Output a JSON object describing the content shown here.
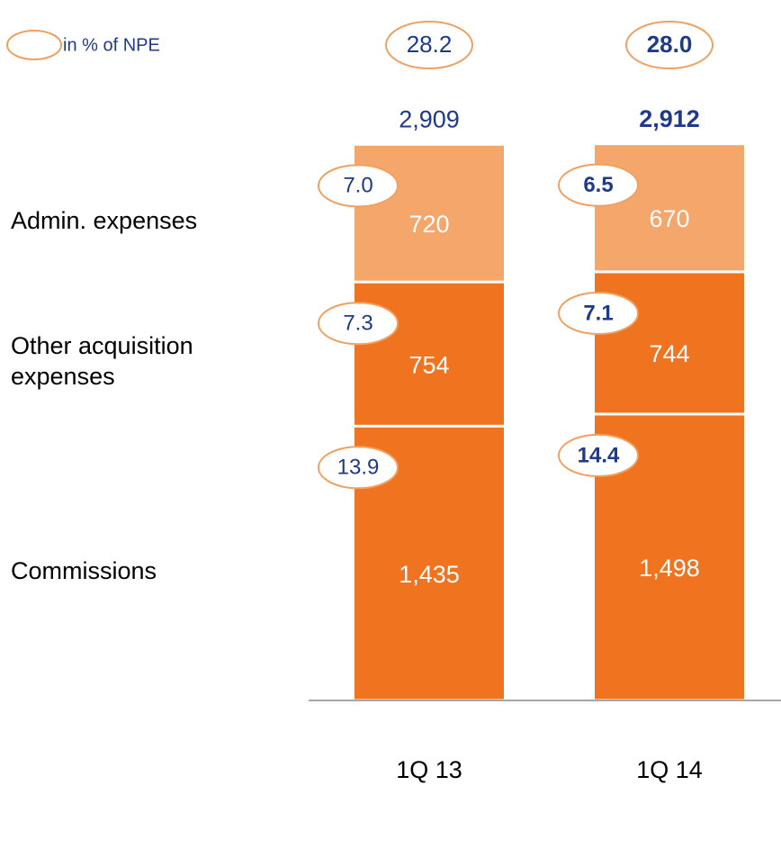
{
  "chart_data": {
    "type": "bar",
    "stacked": true,
    "categories": [
      "1Q 13",
      "1Q 14"
    ],
    "highlight": [
      false,
      true
    ],
    "ratio_legend": "in % of NPE",
    "ylim": [
      0,
      3000
    ],
    "series": [
      {
        "name": "Commissions",
        "color": "#f07320",
        "values": [
          1435,
          1498
        ],
        "value_labels": [
          "1,435",
          "1,498"
        ],
        "ratios": [
          13.9,
          14.4
        ],
        "ratio_labels": [
          "13.9",
          "14.4"
        ]
      },
      {
        "name": "Other acquisition expenses",
        "color": "#f07320",
        "values": [
          754,
          744
        ],
        "value_labels": [
          "754",
          "744"
        ],
        "ratios": [
          7.3,
          7.1
        ],
        "ratio_labels": [
          "7.3",
          "7.1"
        ]
      },
      {
        "name": "Admin. expenses",
        "color": "#f5a66b",
        "values": [
          720,
          670
        ],
        "value_labels": [
          "720",
          "670"
        ],
        "ratios": [
          7.0,
          6.5
        ],
        "ratio_labels": [
          "7.0",
          "6.5"
        ]
      }
    ],
    "totals": {
      "values": [
        2909,
        2912
      ],
      "value_labels": [
        "2,909",
        "2,912"
      ]
    },
    "total_ratios": {
      "values": [
        28.2,
        28.0
      ],
      "value_labels": [
        "28.2",
        "28.0"
      ]
    }
  }
}
